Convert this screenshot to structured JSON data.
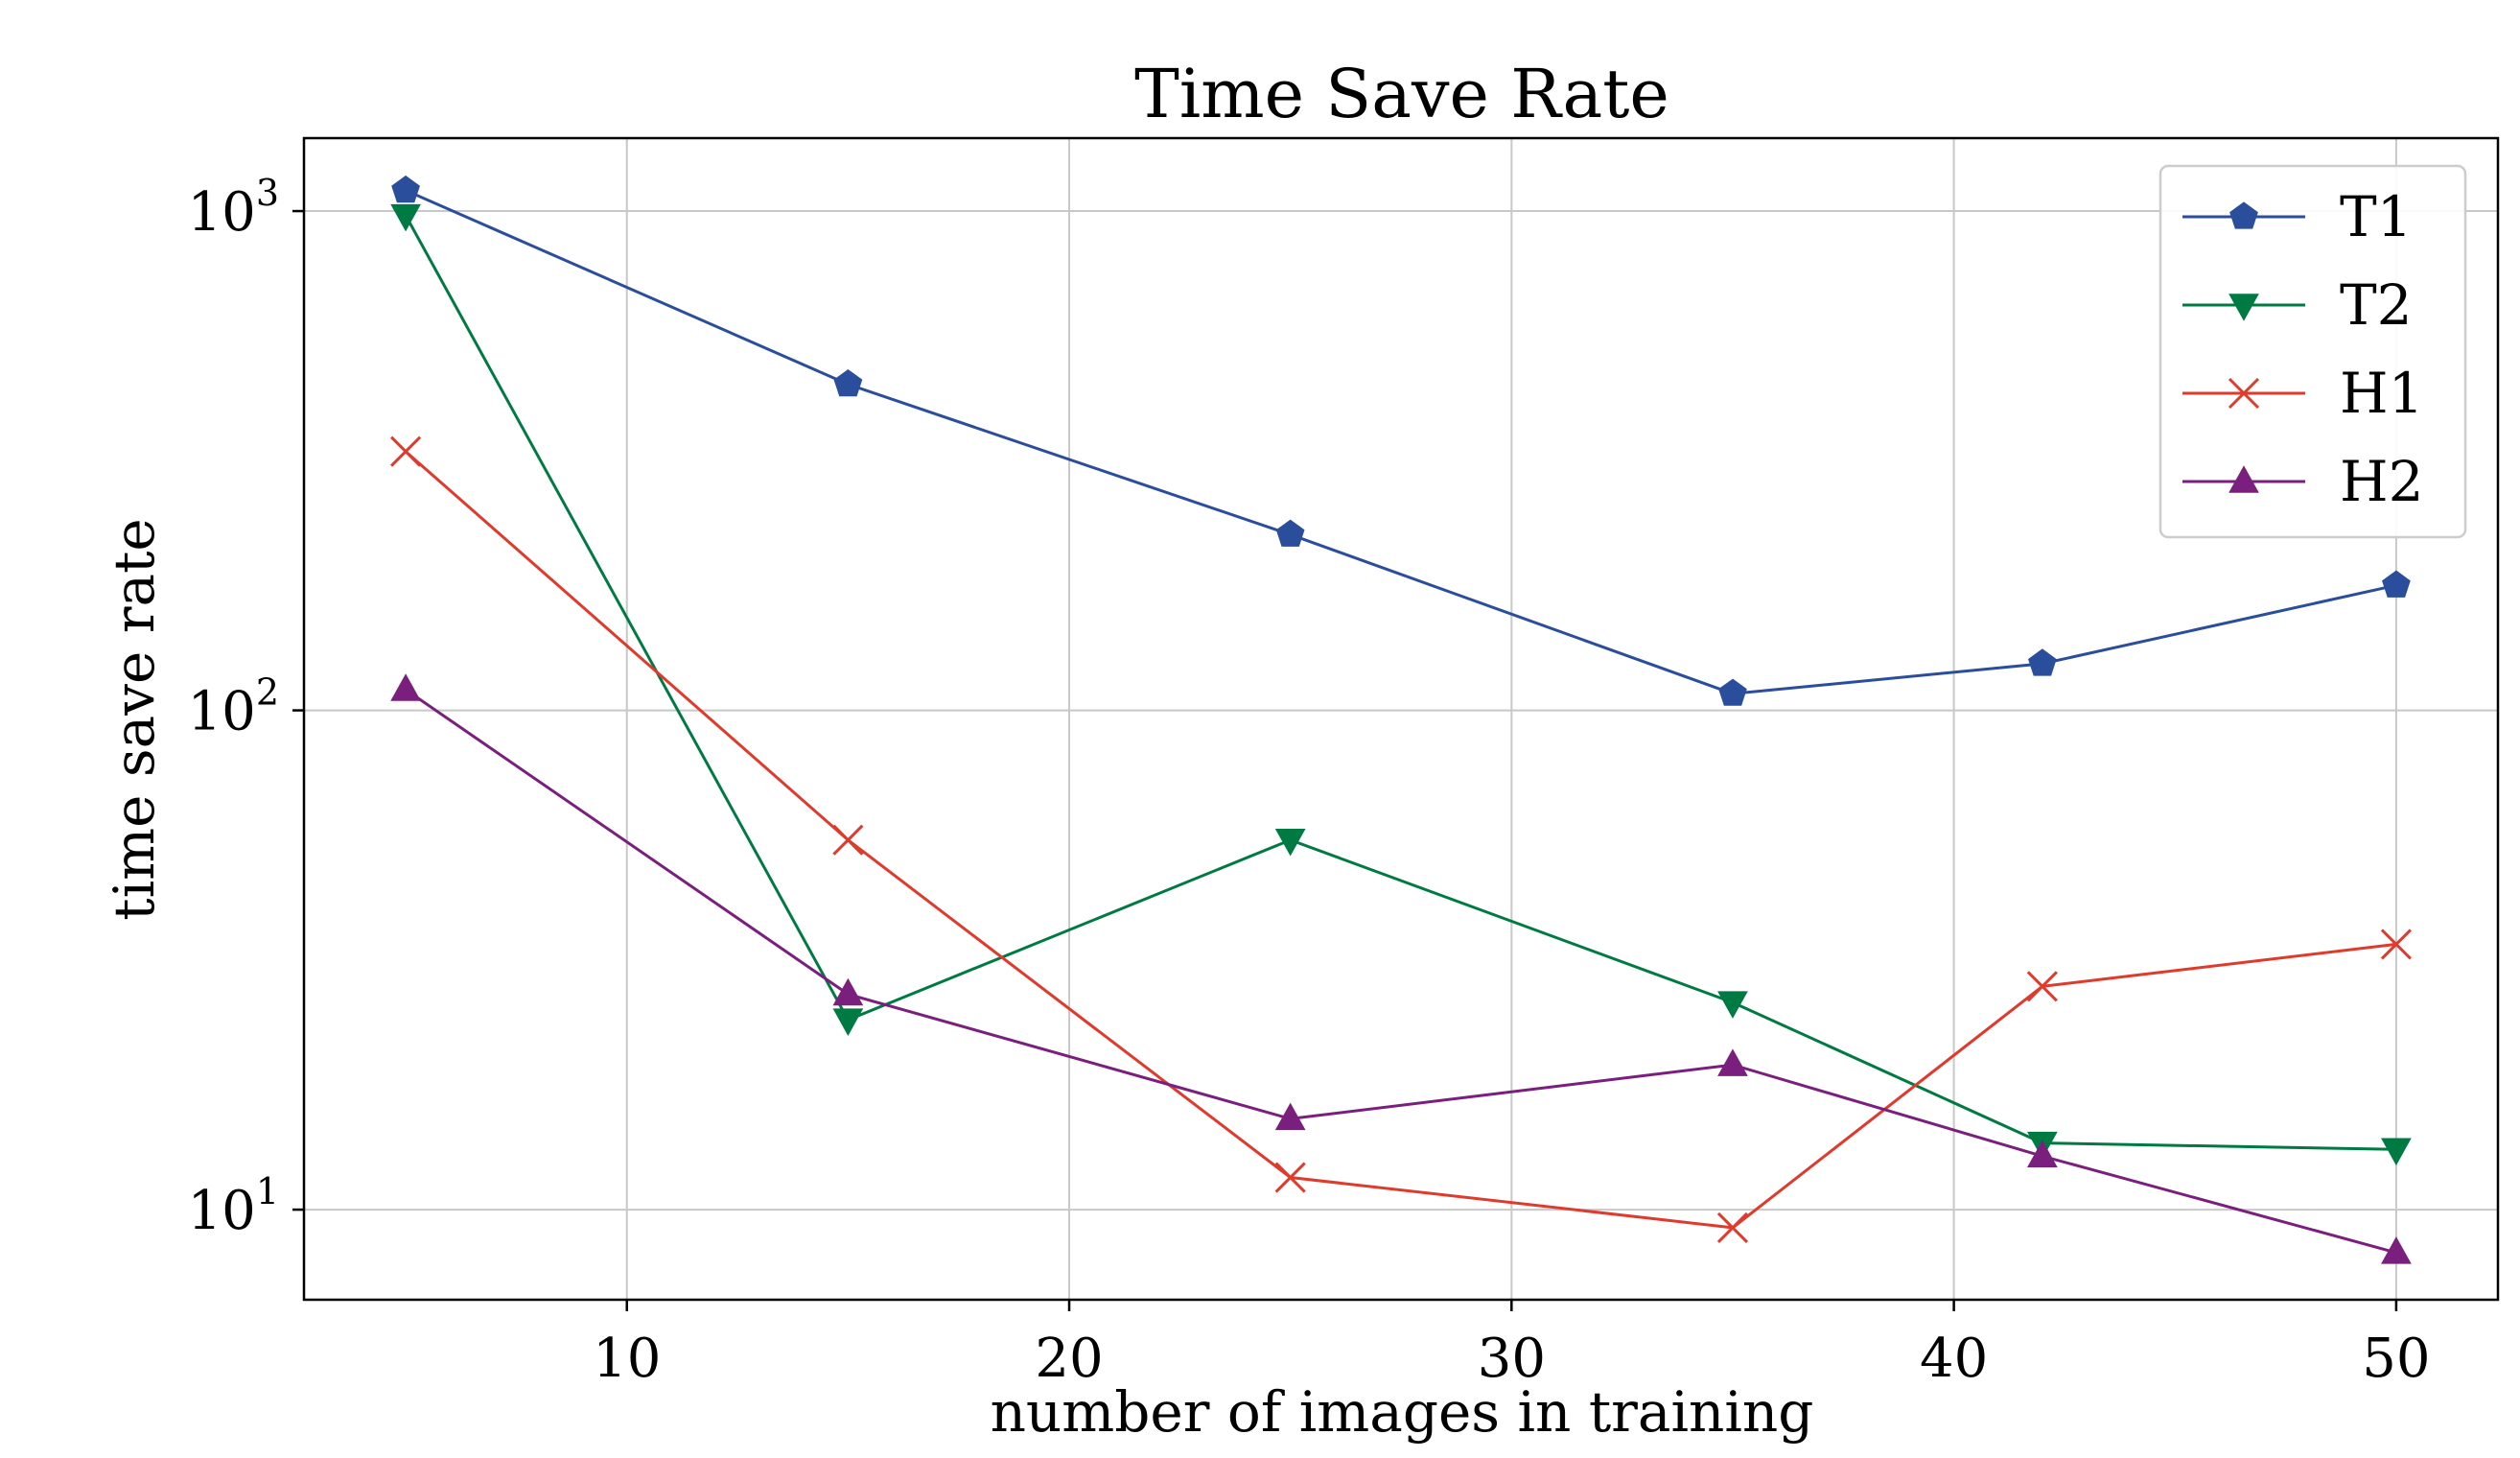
{
  "chart_data": {
    "type": "line",
    "title": "Time Save Rate",
    "xlabel": "number of images in training",
    "ylabel": "time save rate",
    "yscale": "log",
    "xlim": [
      2.7,
      52.3
    ],
    "ylim": [
      6.6,
      1400
    ],
    "xticks": [
      10,
      20,
      30,
      40,
      50
    ],
    "yticks": [
      {
        "value": 10,
        "base": "10",
        "exp": "1"
      },
      {
        "value": 100,
        "base": "10",
        "exp": "2"
      },
      {
        "value": 1000,
        "base": "10",
        "exp": "3"
      }
    ],
    "grid": true,
    "legend_position": "top-right",
    "series": [
      {
        "name": "T1",
        "color": "#2a4e9c",
        "marker": "pentagon",
        "x": [
          5,
          15,
          25,
          35,
          42,
          50
        ],
        "values": [
          1100,
          450,
          225,
          108,
          124,
          178
        ]
      },
      {
        "name": "T2",
        "color": "#007a43",
        "marker": "triangle-down",
        "x": [
          5,
          15,
          25,
          35,
          42,
          50
        ],
        "values": [
          980,
          24,
          55,
          26,
          13.6,
          13.2
        ]
      },
      {
        "name": "H1",
        "color": "#e03a2c",
        "marker": "x",
        "x": [
          5,
          15,
          25,
          35,
          42,
          50
        ],
        "values": [
          330,
          55,
          11.6,
          9.2,
          28,
          34
        ]
      },
      {
        "name": "H2",
        "color": "#7b1f7e",
        "marker": "triangle-up",
        "x": [
          5,
          15,
          25,
          35,
          42,
          50
        ],
        "values": [
          110,
          27,
          15.2,
          19.5,
          12.8,
          8.2
        ]
      }
    ]
  }
}
